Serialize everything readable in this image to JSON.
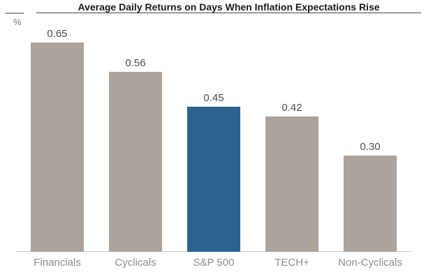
{
  "chart_data": {
    "type": "bar",
    "title": "Average Daily Returns on Days When Inflation Expectations Rise",
    "ylabel": "%",
    "categories": [
      "Financials",
      "Cyclicals",
      "S&P 500",
      "TECH+",
      "Non-Cyclicals"
    ],
    "values": [
      0.65,
      0.56,
      0.45,
      0.42,
      0.3
    ],
    "value_labels": [
      "0.65",
      "0.56",
      "0.45",
      "0.42",
      "0.30"
    ],
    "bar_colors": [
      "#ABA39C",
      "#ABA39C",
      "#2B628F",
      "#ABA39C",
      "#ABA39C"
    ],
    "default_bar_color": "#ABA39C",
    "highlight_bar_color": "#2B628F",
    "highlight_category": "S&P 500",
    "ylim": [
      0,
      0.7
    ],
    "grid": false,
    "legend": false,
    "value_labels_position": "above bars",
    "xlabel": ""
  }
}
